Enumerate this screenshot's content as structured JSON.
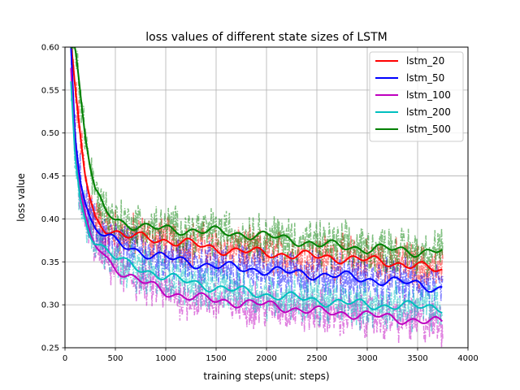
{
  "chart_data": {
    "type": "line",
    "title": "loss values of different state sizes of LSTM",
    "xlabel": "training steps(unit: steps)",
    "ylabel": "loss value",
    "xlim": [
      0,
      4000
    ],
    "ylim": [
      0.25,
      0.6
    ],
    "xticks": [
      0,
      500,
      1000,
      1500,
      2000,
      2500,
      3000,
      3500,
      4000
    ],
    "yticks": [
      0.25,
      0.3,
      0.35,
      0.4,
      0.45,
      0.5,
      0.55,
      0.6
    ],
    "ytick_labels": [
      "0.25",
      "0.30",
      "0.35",
      "0.40",
      "0.45",
      "0.50",
      "0.55",
      "0.60"
    ],
    "grid": true,
    "legend_position": "top-right",
    "raw_series_style": "dash-dot, semi-transparent",
    "series": [
      {
        "name": "lstm_20",
        "color": "#ff0000",
        "x": [
          60,
          100,
          150,
          200,
          250,
          300,
          400,
          500,
          600,
          800,
          1000,
          1200,
          1500,
          1800,
          2000,
          2300,
          2500,
          2800,
          3000,
          3200,
          3500,
          3600,
          3750
        ],
        "values": [
          0.6,
          0.55,
          0.5,
          0.45,
          0.42,
          0.4,
          0.39,
          0.385,
          0.38,
          0.378,
          0.375,
          0.372,
          0.365,
          0.362,
          0.36,
          0.358,
          0.356,
          0.354,
          0.352,
          0.35,
          0.345,
          0.342,
          0.34
        ]
      },
      {
        "name": "lstm_50",
        "color": "#0000ff",
        "x": [
          60,
          100,
          150,
          200,
          250,
          300,
          400,
          500,
          600,
          800,
          1000,
          1200,
          1500,
          1800,
          2000,
          2300,
          2500,
          2800,
          3000,
          3200,
          3500,
          3600,
          3750
        ],
        "values": [
          0.6,
          0.5,
          0.45,
          0.42,
          0.4,
          0.39,
          0.38,
          0.373,
          0.368,
          0.36,
          0.355,
          0.35,
          0.345,
          0.342,
          0.34,
          0.337,
          0.335,
          0.333,
          0.33,
          0.327,
          0.325,
          0.322,
          0.318
        ]
      },
      {
        "name": "lstm_100",
        "color": "#bf00bf",
        "x": [
          60,
          100,
          150,
          200,
          250,
          300,
          400,
          500,
          600,
          800,
          1000,
          1200,
          1500,
          1800,
          2000,
          2300,
          2500,
          2800,
          3000,
          3200,
          3500,
          3600,
          3750
        ],
        "values": [
          0.58,
          0.48,
          0.43,
          0.4,
          0.38,
          0.37,
          0.355,
          0.345,
          0.335,
          0.325,
          0.315,
          0.31,
          0.305,
          0.302,
          0.3,
          0.295,
          0.292,
          0.29,
          0.288,
          0.285,
          0.282,
          0.28,
          0.279
        ]
      },
      {
        "name": "lstm_200",
        "color": "#00bfbf",
        "x": [
          60,
          100,
          150,
          200,
          250,
          300,
          400,
          500,
          600,
          800,
          1000,
          1200,
          1500,
          1800,
          2000,
          2300,
          2500,
          2800,
          3000,
          3200,
          3500,
          3600,
          3750
        ],
        "values": [
          0.56,
          0.47,
          0.42,
          0.4,
          0.385,
          0.375,
          0.365,
          0.355,
          0.348,
          0.34,
          0.333,
          0.327,
          0.32,
          0.315,
          0.312,
          0.308,
          0.305,
          0.302,
          0.3,
          0.299,
          0.298,
          0.298,
          0.297
        ]
      },
      {
        "name": "lstm_500",
        "color": "#008000",
        "x": [
          60,
          100,
          150,
          200,
          250,
          300,
          400,
          500,
          600,
          800,
          1000,
          1200,
          1500,
          1800,
          2000,
          2300,
          2500,
          2800,
          3000,
          3200,
          3500,
          3600,
          3750
        ],
        "values": [
          0.6,
          0.6,
          0.55,
          0.5,
          0.46,
          0.43,
          0.41,
          0.4,
          0.395,
          0.39,
          0.388,
          0.387,
          0.385,
          0.382,
          0.38,
          0.375,
          0.37,
          0.368,
          0.365,
          0.365,
          0.362,
          0.362,
          0.363
        ]
      }
    ]
  }
}
